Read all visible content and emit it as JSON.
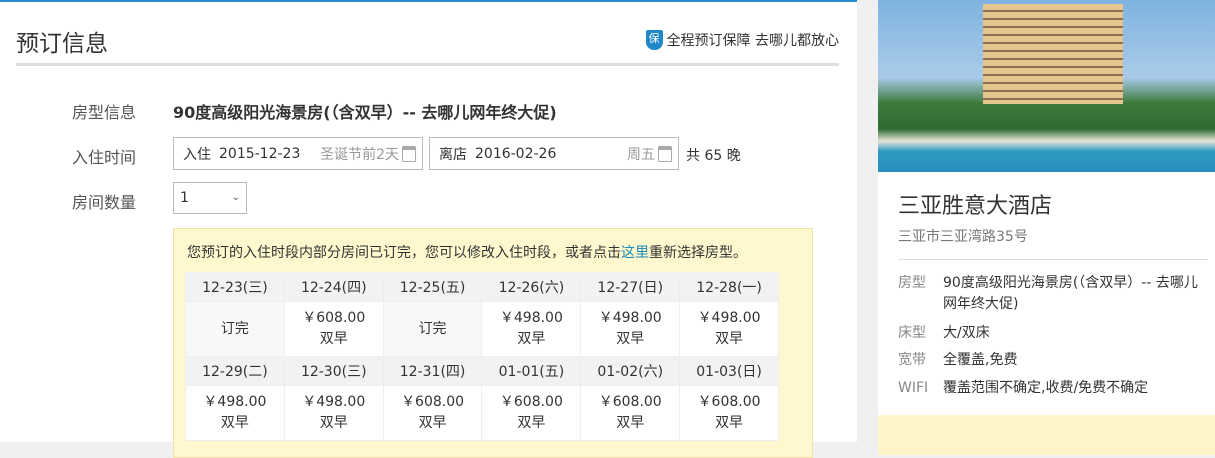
{
  "header": {
    "title": "预订信息",
    "guarantee_icon": "保",
    "guarantee": "全程预订保障 去哪儿都放心"
  },
  "form": {
    "room_label": "房型信息",
    "room_name": "90度高级阳光海景房(（含双早）-- 去哪儿网年终大促)",
    "date_label": "入住时间",
    "checkin": {
      "prefix": "入住",
      "date": "2015-12-23",
      "hint": "圣诞节前2天"
    },
    "checkout": {
      "prefix": "离店",
      "date": "2016-02-26",
      "hint": "周五"
    },
    "nights": "共 65 晚",
    "qty_label": "房间数量",
    "qty_value": "1"
  },
  "notice": {
    "text_before": "您预订的入住时段内部分房间已订完，您可以修改入住时段，或者点击",
    "link": "这里",
    "text_after": "重新选择房型。"
  },
  "calendar": [
    {
      "dates": [
        "12-23(三)",
        "12-24(四)",
        "12-25(五)",
        "12-26(六)",
        "12-27(日)",
        "12-28(一)"
      ],
      "cells": [
        {
          "status": "订完"
        },
        {
          "price": "￥608.00",
          "meal": "双早"
        },
        {
          "status": "订完"
        },
        {
          "price": "￥498.00",
          "meal": "双早"
        },
        {
          "price": "￥498.00",
          "meal": "双早"
        },
        {
          "price": "￥498.00",
          "meal": "双早"
        }
      ]
    },
    {
      "dates": [
        "12-29(二)",
        "12-30(三)",
        "12-31(四)",
        "01-01(五)",
        "01-02(六)",
        "01-03(日)"
      ],
      "cells": [
        {
          "price": "￥498.00",
          "meal": "双早"
        },
        {
          "price": "￥498.00",
          "meal": "双早"
        },
        {
          "price": "￥608.00",
          "meal": "双早"
        },
        {
          "price": "￥608.00",
          "meal": "双早"
        },
        {
          "price": "￥608.00",
          "meal": "双早"
        },
        {
          "price": "￥608.00",
          "meal": "双早"
        }
      ]
    }
  ],
  "hotel": {
    "name": "三亚胜意大酒店",
    "address": "三亚市三亚湾路35号",
    "details": [
      {
        "k": "房型",
        "v": "90度高级阳光海景房(（含双早）-- 去哪儿网年终大促)"
      },
      {
        "k": "床型",
        "v": "大/双床"
      },
      {
        "k": "宽带",
        "v": "全覆盖,免费"
      },
      {
        "k": "WIFI",
        "v": "覆盖范围不确定,收费/免费不确定"
      }
    ]
  }
}
